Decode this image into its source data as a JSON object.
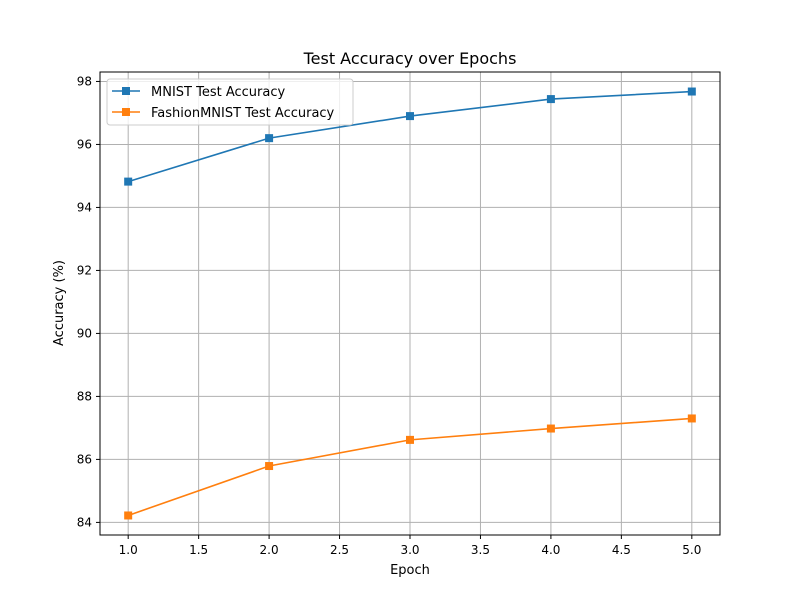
{
  "chart_data": {
    "type": "line",
    "title": "Test Accuracy over Epochs",
    "xlabel": "Epoch",
    "ylabel": "Accuracy (%)",
    "x": [
      1,
      2,
      3,
      4,
      5
    ],
    "xlim": [
      0.8,
      5.2
    ],
    "ylim": [
      83.6,
      98.3
    ],
    "xticks": [
      "1.0",
      "1.5",
      "2.0",
      "2.5",
      "3.0",
      "3.5",
      "4.0",
      "4.5",
      "5.0"
    ],
    "yticks": [
      "84",
      "86",
      "88",
      "90",
      "92",
      "94",
      "96",
      "98"
    ],
    "grid": true,
    "legend_position": "top-left",
    "series": [
      {
        "name": "MNIST Test Accuracy",
        "color": "#1f77b4",
        "marker": "square",
        "values": [
          94.82,
          96.2,
          96.9,
          97.44,
          97.68
        ]
      },
      {
        "name": "FashionMNIST Test Accuracy",
        "color": "#ff7f0e",
        "marker": "square",
        "values": [
          84.22,
          85.79,
          86.62,
          86.98,
          87.3
        ]
      }
    ]
  }
}
